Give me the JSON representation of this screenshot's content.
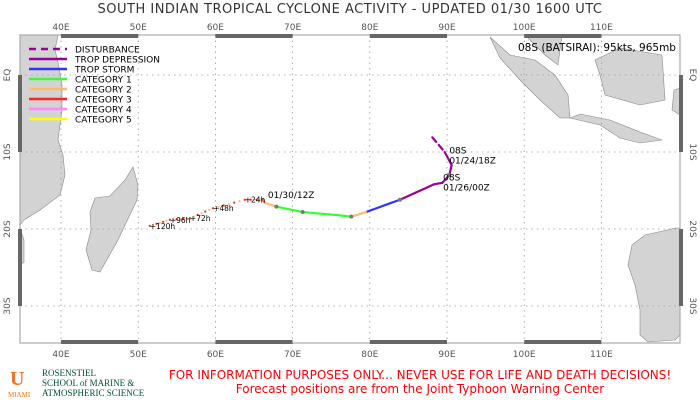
{
  "title": "SOUTH INDIAN TROPICAL CYCLONE ACTIVITY - UPDATED 01/30 1600 UTC",
  "storm_info": "08S (BATSIRAI): 95kts, 965mb",
  "map": {
    "projection": "cylindrical",
    "lon_range": [
      35,
      120
    ],
    "lat_range": [
      -35,
      5
    ],
    "lon_ticks": [
      "40E",
      "50E",
      "60E",
      "70E",
      "80E",
      "90E",
      "100E",
      "110E"
    ],
    "lat_ticks": [
      "EQ",
      "10S",
      "20S",
      "30S"
    ],
    "grid": "dotted",
    "land_color": "#d3d3d3"
  },
  "legend": [
    {
      "label": "DISTURBANCE",
      "color": "#990099",
      "dash": true
    },
    {
      "label": "TROP DEPRESSION",
      "color": "#990099"
    },
    {
      "label": "TROP STORM",
      "color": "#3333ff"
    },
    {
      "label": "CATEGORY 1",
      "color": "#33ff33"
    },
    {
      "label": "CATEGORY 2",
      "color": "#ffbb66"
    },
    {
      "label": "CATEGORY 3",
      "color": "#ff2222"
    },
    {
      "label": "CATEGORY 4",
      "color": "#ff88ff"
    },
    {
      "label": "CATEGORY 5",
      "color": "#ffff00"
    }
  ],
  "track": [
    {
      "lon": 88.1,
      "lat": -8.1,
      "cat": 0
    },
    {
      "lon": 89.7,
      "lat": -10.0,
      "cat": 1
    },
    {
      "lon": 90.6,
      "lat": -11.7,
      "cat": 1
    },
    {
      "lon": 90.3,
      "lat": -13.0,
      "cat": 1
    },
    {
      "lon": 89.4,
      "lat": -14.0,
      "cat": 1
    },
    {
      "lon": 88.3,
      "lat": -14.2,
      "cat": 1
    },
    {
      "lon": 83.9,
      "lat": -16.2,
      "cat": 1
    },
    {
      "lon": 79.5,
      "lat": -17.8,
      "cat": 2
    },
    {
      "lon": 77.6,
      "lat": -18.4,
      "cat": 4
    },
    {
      "lon": 75.8,
      "lat": -18.2,
      "cat": 3
    },
    {
      "lon": 71.3,
      "lat": -17.8,
      "cat": 3
    },
    {
      "lon": 67.9,
      "lat": -17.1,
      "cat": 3
    },
    {
      "lon": 66.4,
      "lat": -16.6,
      "cat": 4
    }
  ],
  "forecast": [
    {
      "lon": 66.1,
      "lat": -16.2,
      "label": "",
      "cat": 4
    },
    {
      "lon": 63.8,
      "lat": -16.2,
      "label": "+24h",
      "cat": 5
    },
    {
      "lon": 59.7,
      "lat": -17.3,
      "label": "+48h",
      "cat": 4
    },
    {
      "lon": 56.7,
      "lat": -18.6,
      "label": "+72h",
      "cat": 4
    },
    {
      "lon": 54.1,
      "lat": -18.8,
      "label": "+96h",
      "cat": 5
    },
    {
      "lon": 51.5,
      "lat": -19.6,
      "label": "+120h",
      "cat": 5
    }
  ],
  "labels": [
    {
      "text1": "08S",
      "text2": "01/24/18Z",
      "lon": 90.3,
      "lat": -10.2
    },
    {
      "text1": "08S",
      "text2": "01/26/00Z",
      "lon": 89.5,
      "lat": -13.7
    },
    {
      "text1": "",
      "text2": "01/30/12Z",
      "lon": 66.8,
      "lat": -16.0
    }
  ],
  "footer": {
    "warning": "FOR INFORMATION PURPOSES ONLY... NEVER USE FOR LIFE AND DEATH DECISIONS!",
    "source": "Forecast positions are from the Joint Typhoon Warning Center"
  },
  "logo": {
    "mark": "U",
    "city": "MIAMI",
    "school": [
      "ROSENSTIEL",
      "SCHOOL of MARINE &",
      "ATMOSPHERIC SCIENCE"
    ]
  }
}
